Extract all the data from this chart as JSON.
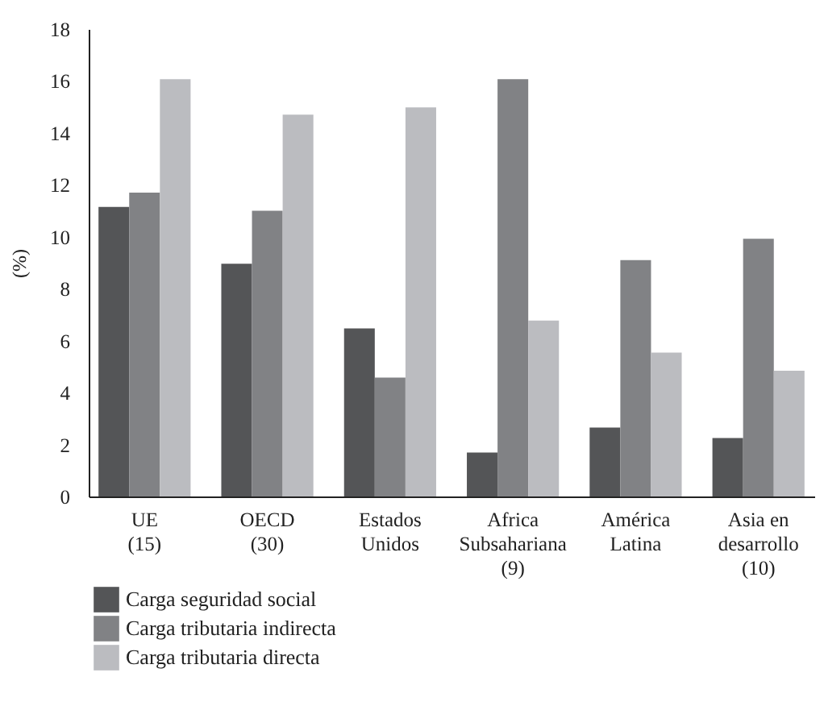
{
  "chart_data": {
    "type": "bar",
    "ylabel": "(%)",
    "categories": [
      "UE\n(15)",
      "OECD\n(30)",
      "Estados\nUnidos",
      "Africa\nSubsahariana\n(9)",
      "América\nLatina",
      "Asia en\ndesarrollo\n(10)"
    ],
    "series": [
      {
        "name": "Carga seguridad social",
        "color": "#545557",
        "values": [
          11.15,
          8.96,
          6.47,
          1.69,
          2.65,
          2.25
        ]
      },
      {
        "name": "Carga tributaria indirecta",
        "color": "#818285",
        "values": [
          11.7,
          11.0,
          4.58,
          16.07,
          9.1,
          9.92
        ]
      },
      {
        "name": "Carga tributaria directa",
        "color": "#bbbcc0",
        "values": [
          16.07,
          14.7,
          14.98,
          6.77,
          5.54,
          4.84
        ]
      }
    ],
    "ylim": [
      0,
      18
    ],
    "yticks": [
      0,
      2,
      4,
      6,
      8,
      10,
      12,
      14,
      16,
      18
    ],
    "grid": false,
    "legend": "bottom left"
  }
}
